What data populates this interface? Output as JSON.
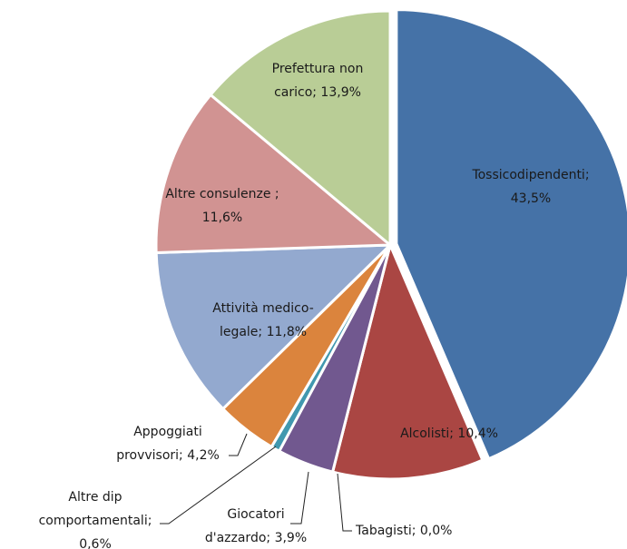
{
  "chart_data": {
    "type": "pie",
    "values": [
      43.5,
      10.4,
      0.0,
      3.9,
      0.6,
      4.2,
      11.8,
      11.6,
      13.9
    ],
    "value_labels": [
      [
        "Tossicodipendenti;",
        "43,5%"
      ],
      [
        "Alcolisti; 10,4%"
      ],
      [
        "Tabagisti; 0,0%"
      ],
      [
        "Giocatori",
        "d'azzardo; 3,9%"
      ],
      [
        "Altre dip",
        "comportamentali;",
        "0,6%"
      ],
      [
        "Appoggiati",
        "provvisori; 4,2%"
      ],
      [
        "Attività medico-",
        "legale; 11,8%"
      ],
      [
        "Altre consulenze ;",
        "11,6%"
      ],
      [
        "Prefettura non",
        "carico; 13,9%"
      ]
    ],
    "colors": [
      "#4572a7",
      "#aa4643",
      "#89a54e",
      "#71588f",
      "#4198af",
      "#db843d",
      "#93a9cf",
      "#d19392",
      "#b9cd96"
    ]
  }
}
